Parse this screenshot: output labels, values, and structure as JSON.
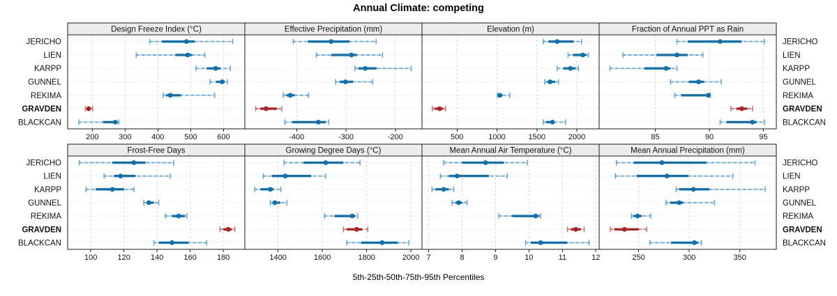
{
  "title": "Annual Climate: competing",
  "x_axis_label": "5th-25th-50th-75th-95th Percentiles",
  "highlighted_site": "GRAVDEN",
  "colors": {
    "blue_main": "#0e72b0",
    "blue_mid": "#5da5d2",
    "blue_light": "#b4d5e9",
    "red_main": "#b22222",
    "red_mid": "#c9706a",
    "red_light": "#e5b6b1",
    "strip_bg": "#ececec",
    "panel_border": "#1a1a1a",
    "grid": "#d9d9d9",
    "tick": "#222222",
    "text": "#111111"
  },
  "chart_data": {
    "type": "scatter",
    "subtype": "lattice percentile interval dot plot (2 rows x 4 columns of panels)",
    "title": "Annual Climate: competing",
    "xlabel": "5th-25th-50th-75th-95th Percentiles",
    "percentile_levels": [
      5,
      25,
      50,
      75,
      95
    ],
    "categories": [
      "JERICHO",
      "LIEN",
      "KARPP",
      "GUNNEL",
      "REKIMA",
      "GRAVDEN",
      "BLACKCAN"
    ],
    "highlight": "GRAVDEN",
    "grid": true,
    "legend_position": "none",
    "site_labels": "left and right of every panel row; GRAVDEN bold",
    "panels": [
      {
        "title": "Design Freeze Index (°C)",
        "xlim": [
          125,
          665
        ],
        "ticks": [
          200,
          300,
          400,
          500,
          600
        ],
        "values": {
          "JERICHO": [
            375,
            412,
            487,
            512,
            628
          ],
          "LIEN": [
            334,
            453,
            491,
            504,
            543
          ],
          "KARPP": [
            516,
            549,
            576,
            591,
            621
          ],
          "GUNNEL": [
            559,
            577,
            596,
            604,
            612
          ],
          "REKIMA": [
            416,
            425,
            438,
            470,
            573
          ],
          "GRAVDEN": [
            179,
            184,
            189,
            195,
            201
          ],
          "BLACKCAN": [
            159,
            233,
            270,
            278,
            281
          ]
        }
      },
      {
        "title": "Effective Precipitation (mm)",
        "xlim": [
          -505,
          -146
        ],
        "ticks": [
          -400,
          -300,
          -200
        ],
        "values": {
          "JERICHO": [
            -407,
            -377,
            -330,
            -293,
            -239
          ],
          "LIEN": [
            -360,
            -330,
            -289,
            -278,
            -226
          ],
          "KARPP": [
            -282,
            -275,
            -261,
            -238,
            -168
          ],
          "GUNNEL": [
            -321,
            -313,
            -301,
            -286,
            -246
          ],
          "REKIMA": [
            -427,
            -421,
            -413,
            -404,
            -376
          ],
          "GRAVDEN": [
            -483,
            -474,
            -462,
            -440,
            -430
          ],
          "BLACKCAN": [
            -424,
            -409,
            -356,
            -341,
            -335
          ]
        }
      },
      {
        "title": "Elevation (m)",
        "xlim": [
          60,
          2280
        ],
        "ticks": [
          500,
          1000,
          1500,
          2000
        ],
        "values": {
          "JERICHO": [
            1580,
            1643,
            1754,
            1960,
            2059
          ],
          "LIEN": [
            1890,
            1950,
            2075,
            2120,
            2145
          ],
          "KARPP": [
            1755,
            1830,
            1920,
            1985,
            2020
          ],
          "GUNNEL": [
            1600,
            1630,
            1666,
            1730,
            1770
          ],
          "REKIMA": [
            1005,
            1015,
            1035,
            1070,
            1160
          ],
          "GRAVDEN": [
            190,
            220,
            280,
            325,
            355
          ],
          "BLACKCAN": [
            1580,
            1615,
            1695,
            1715,
            1860
          ]
        }
      },
      {
        "title": "Fraction of Annual PPT as Rain",
        "xlim": [
          79.8,
          96.2
        ],
        "ticks": [
          85,
          90,
          95
        ],
        "values": {
          "JERICHO": [
            87.0,
            88.0,
            91.0,
            93.0,
            95.1
          ],
          "LIEN": [
            82.0,
            85.1,
            87.0,
            88.0,
            89.4
          ],
          "KARPP": [
            80.8,
            84.0,
            86.0,
            86.4,
            87.0
          ],
          "GUNNEL": [
            86.4,
            88.1,
            89.0,
            89.5,
            91.1
          ],
          "REKIMA": [
            86.8,
            87.4,
            89.9,
            90.0,
            90.1
          ],
          "GRAVDEN": [
            92.0,
            92.5,
            93.0,
            93.5,
            94.0
          ],
          "BLACKCAN": [
            91.0,
            91.6,
            94.0,
            94.4,
            95.1
          ]
        }
      },
      {
        "title": "Frost-Free Days",
        "xlim": [
          86,
          193
        ],
        "ticks": [
          100,
          120,
          140,
          160,
          180
        ],
        "values": {
          "JERICHO": [
            93,
            113,
            126,
            133,
            150
          ],
          "LIEN": [
            108,
            114,
            118,
            127,
            148
          ],
          "KARPP": [
            97,
            103,
            113,
            120,
            126
          ],
          "GUNNEL": [
            132,
            134,
            135,
            138,
            141
          ],
          "REKIMA": [
            145,
            149,
            153,
            157,
            158
          ],
          "GRAVDEN": [
            178,
            180,
            183,
            185,
            187
          ],
          "BLACKCAN": [
            138,
            141,
            149,
            159,
            170
          ]
        }
      },
      {
        "title": "Growing Degree Days (°C)",
        "xlim": [
          1250,
          2050
        ],
        "ticks": [
          1400,
          1600,
          1800,
          2000
        ],
        "values": {
          "JERICHO": [
            1427,
            1515,
            1615,
            1695,
            1770
          ],
          "LIEN": [
            1333,
            1373,
            1433,
            1550,
            1615
          ],
          "KARPP": [
            1295,
            1320,
            1365,
            1380,
            1413
          ],
          "GUNNEL": [
            1365,
            1375,
            1385,
            1410,
            1440
          ],
          "REKIMA": [
            1610,
            1655,
            1735,
            1750,
            1760
          ],
          "GRAVDEN": [
            1695,
            1710,
            1755,
            1780,
            1805
          ],
          "BLACKCAN": [
            1710,
            1775,
            1870,
            1940,
            1990
          ]
        }
      },
      {
        "title": "Mean Annual Air Temperature (°C)",
        "xlim": [
          6.8,
          12.1
        ],
        "ticks": [
          7,
          8,
          9,
          10,
          11,
          12
        ],
        "values": {
          "JERICHO": [
            7.45,
            8.0,
            8.7,
            9.25,
            9.95
          ],
          "LIEN": [
            7.35,
            7.6,
            7.85,
            8.8,
            9.35
          ],
          "KARPP": [
            7.1,
            7.2,
            7.45,
            7.6,
            7.75
          ],
          "GUNNEL": [
            7.7,
            7.8,
            7.9,
            8.0,
            8.15
          ],
          "REKIMA": [
            9.1,
            9.5,
            10.2,
            10.3,
            10.35
          ],
          "GRAVDEN": [
            11.15,
            11.25,
            11.4,
            11.55,
            11.65
          ],
          "BLACKCAN": [
            9.9,
            10.05,
            10.35,
            11.15,
            11.8
          ]
        }
      },
      {
        "title": "Mean Annual Precipitation (mm)",
        "xlim": [
          211,
          386
        ],
        "ticks": [
          250,
          300,
          350
        ],
        "values": {
          "JERICHO": [
            228,
            245,
            273,
            317,
            365
          ],
          "LIEN": [
            227,
            248,
            278,
            299,
            343
          ],
          "KARPP": [
            287,
            290,
            304,
            320,
            375
          ],
          "GUNNEL": [
            277,
            281,
            290,
            294,
            325
          ],
          "REKIMA": [
            243,
            245,
            249,
            253,
            262
          ],
          "GRAVDEN": [
            222,
            226,
            236,
            250,
            258
          ],
          "BLACKCAN": [
            261,
            282,
            305,
            309,
            312
          ]
        }
      }
    ]
  }
}
